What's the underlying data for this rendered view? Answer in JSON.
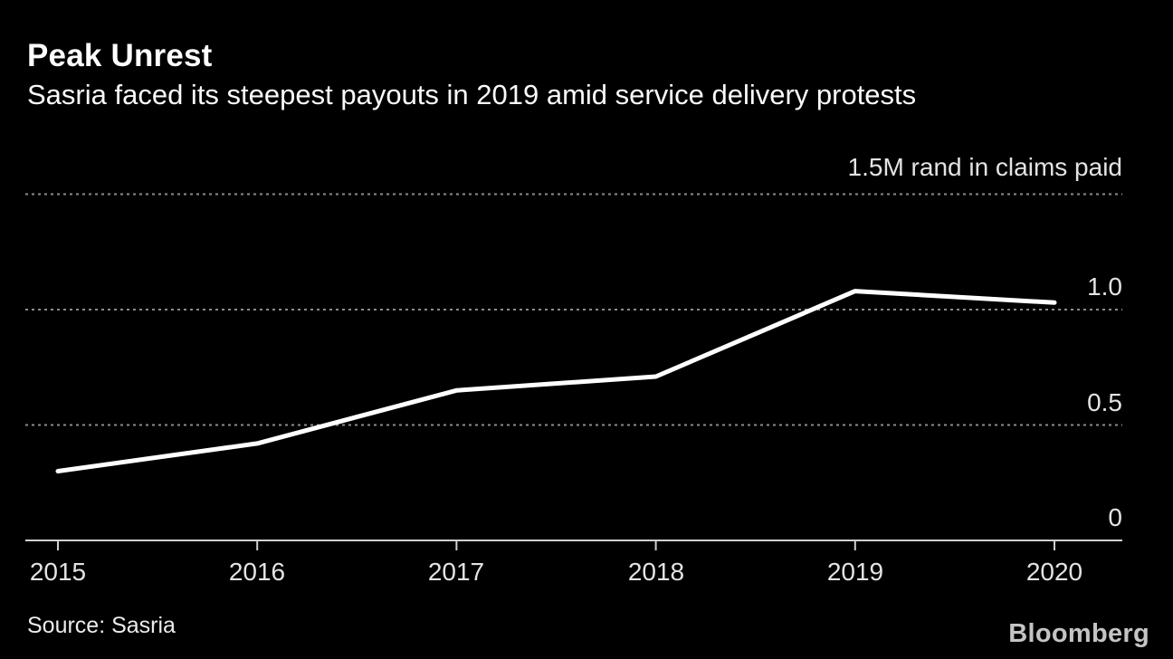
{
  "header": {
    "title": "Peak Unrest",
    "subtitle": "Sasria faced its steepest payouts in 2019 amid service delivery protests"
  },
  "chart_data": {
    "type": "line",
    "title": "Peak Unrest",
    "subtitle": "Sasria faced its steepest payouts in 2019 amid service delivery protests",
    "unit_label": "1.5M rand in claims paid",
    "x": [
      2015,
      2016,
      2017,
      2018,
      2019,
      2020
    ],
    "xtick_labels": [
      "2015",
      "2016",
      "2017",
      "2018",
      "2019",
      "2020"
    ],
    "series": [
      {
        "name": "Claims paid (M rand)",
        "values": [
          0.3,
          0.42,
          0.65,
          0.71,
          1.08,
          1.03
        ]
      }
    ],
    "ylim": [
      0,
      1.5
    ],
    "yticks": [
      0,
      0.5,
      1.0,
      1.5
    ],
    "ytick_labels": [
      "0",
      "0.5",
      "1.0"
    ],
    "grid": "horizontal-dotted",
    "legend": "none"
  },
  "footer": {
    "source": "Source: Sasria",
    "brand": "Bloomberg"
  },
  "colors": {
    "background": "#000000",
    "line": "#ffffff",
    "grid": "#8c8c8c",
    "axis": "#d0d0d0",
    "title_text": "#ffffff",
    "label_text": "#e3e3e3",
    "brand_gray": "#c4c4c4"
  }
}
